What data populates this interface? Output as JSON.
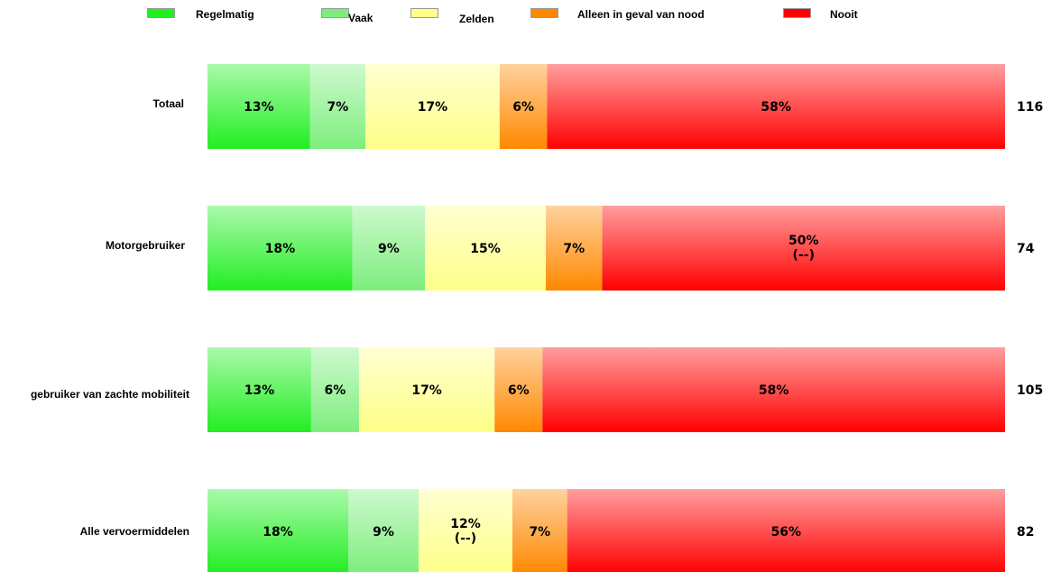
{
  "chart_data": {
    "type": "bar",
    "orientation": "horizontal",
    "stacked": true,
    "normalized": true,
    "legend_position": "top",
    "grid": false,
    "title": "",
    "xlabel": "",
    "ylabel": "",
    "categories": [
      "Totaal",
      "Motorgebruiker",
      "gebruiker van zachte mobiliteit",
      "Alle vervoermiddelen"
    ],
    "series": [
      {
        "name": "Regelmatig",
        "color": "#22ee22",
        "values": [
          13,
          18,
          13,
          18
        ],
        "labels": [
          "13%",
          "18%",
          "13%",
          "18%"
        ]
      },
      {
        "name": "Vaak",
        "color": "#7dee7d",
        "values": [
          7,
          9,
          6,
          9
        ],
        "labels": [
          "7%",
          "9%",
          "6%",
          "9%"
        ]
      },
      {
        "name": "Zelden",
        "color": "#ffff88",
        "values": [
          17,
          15,
          17,
          12
        ],
        "labels": [
          "17%",
          "15%",
          "17%",
          "12%\n(--)"
        ]
      },
      {
        "name": "Alleen in geval van nood",
        "color": "#ff8800",
        "values": [
          6,
          7,
          6,
          7
        ],
        "labels": [
          "6%",
          "7%",
          "6%",
          "7%"
        ]
      },
      {
        "name": "Nooit",
        "color": "#ff0000",
        "values": [
          58,
          50,
          58,
          56
        ],
        "labels": [
          "58%",
          "50%\n(--)",
          "58%",
          "56%"
        ]
      }
    ],
    "totals": [
      "116",
      "74",
      "105",
      "82"
    ]
  }
}
